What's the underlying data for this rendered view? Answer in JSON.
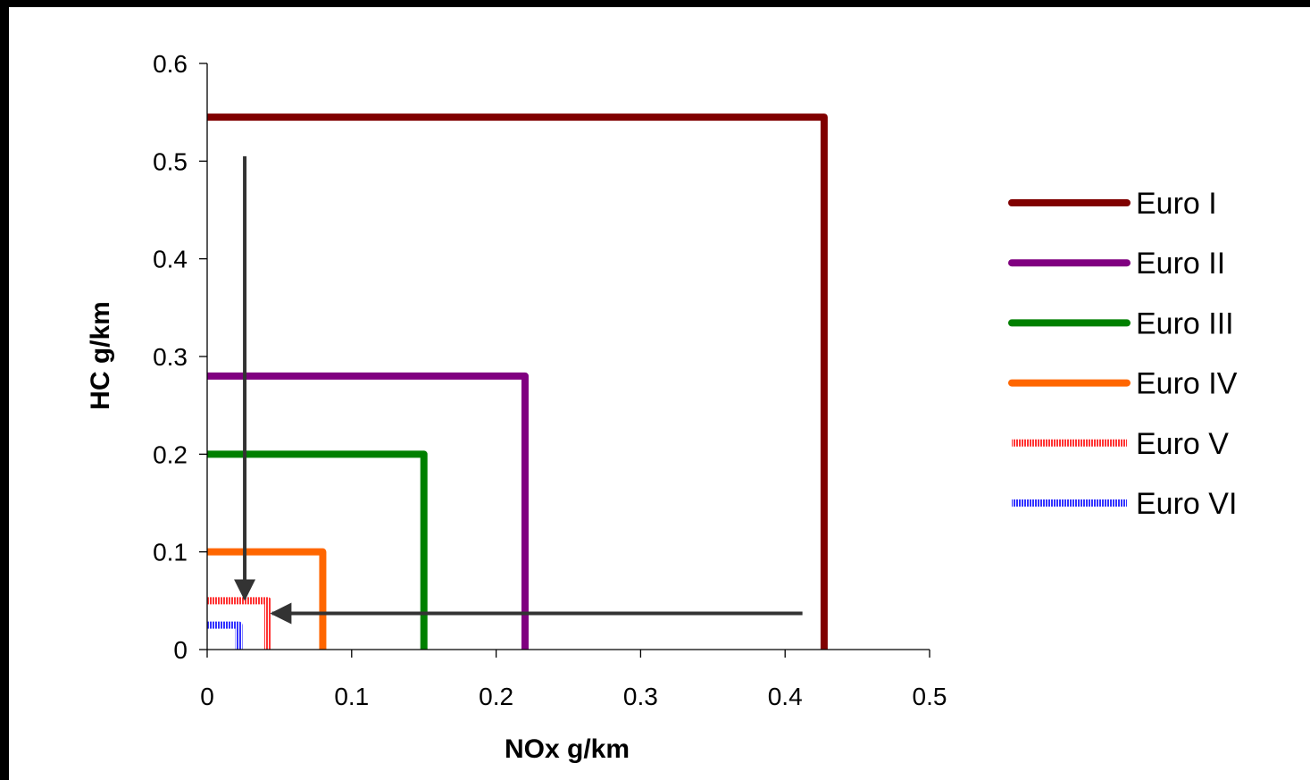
{
  "chart_data": {
    "type": "line",
    "title": "",
    "xlabel": "NOx g/km",
    "ylabel": "HC g/km",
    "xlim": [
      0,
      0.5
    ],
    "ylim": [
      0,
      0.6
    ],
    "x_ticks": [
      0,
      0.1,
      0.2,
      0.3,
      0.4,
      0.5
    ],
    "x_tick_labels": [
      "0",
      "0.1",
      "0.2",
      "0.3",
      "0.4",
      "0.5"
    ],
    "y_ticks": [
      0,
      0.1,
      0.2,
      0.3,
      0.4,
      0.5,
      0.6
    ],
    "y_tick_labels": [
      "0",
      "0.1",
      "0.2",
      "0.3",
      "0.4",
      "0.5",
      "0.6"
    ],
    "grid": false,
    "legend_position": "right",
    "series": [
      {
        "name": "Euro I",
        "color": "#800000",
        "style": "solid",
        "points": [
          [
            0,
            0.545
          ],
          [
            0.427,
            0.545
          ],
          [
            0.427,
            0
          ]
        ]
      },
      {
        "name": "Euro II",
        "color": "#800080",
        "style": "solid",
        "points": [
          [
            0,
            0.28
          ],
          [
            0.22,
            0.28
          ],
          [
            0.22,
            0
          ]
        ]
      },
      {
        "name": "Euro III",
        "color": "#008000",
        "style": "solid",
        "points": [
          [
            0,
            0.2
          ],
          [
            0.15,
            0.2
          ],
          [
            0.15,
            0
          ]
        ]
      },
      {
        "name": "Euro IV",
        "color": "#ff6600",
        "style": "solid",
        "points": [
          [
            0,
            0.1
          ],
          [
            0.08,
            0.1
          ],
          [
            0.08,
            0
          ]
        ]
      },
      {
        "name": "Euro V",
        "color": "#ff3333",
        "style": "striped",
        "points": [
          [
            0,
            0.05
          ],
          [
            0.042,
            0.05
          ],
          [
            0.042,
            0
          ]
        ]
      },
      {
        "name": "Euro VI",
        "color": "#3333ff",
        "style": "striped",
        "points": [
          [
            0,
            0.025
          ],
          [
            0.022,
            0.025
          ],
          [
            0.022,
            0
          ]
        ]
      }
    ],
    "annotations": [
      {
        "type": "arrow",
        "color": "#333333",
        "from": [
          0.026,
          0.505
        ],
        "to": [
          0.026,
          0.052
        ]
      },
      {
        "type": "arrow",
        "color": "#333333",
        "from": [
          0.412,
          0.037
        ],
        "to": [
          0.045,
          0.037
        ]
      }
    ]
  }
}
